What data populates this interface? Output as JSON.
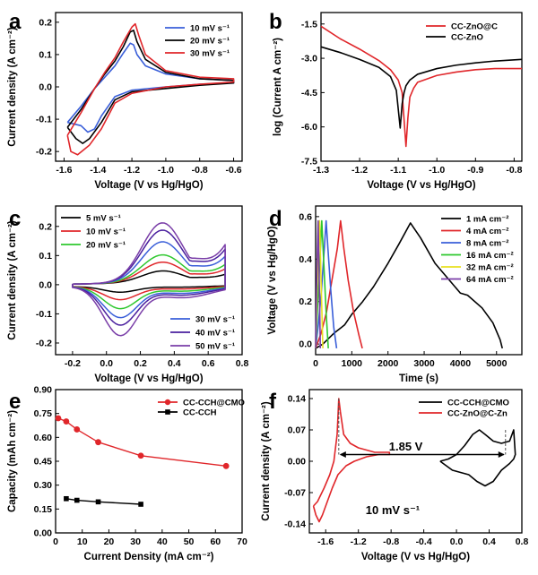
{
  "figure": {
    "panel_labels": [
      "a",
      "b",
      "c",
      "d",
      "e",
      "f"
    ]
  },
  "chart_data": [
    {
      "panel": "a",
      "type": "line",
      "xlabel": "Voltage (V vs Hg/HgO)",
      "ylabel": "Current density (A cm⁻²)",
      "xlim": [
        -1.65,
        -0.55
      ],
      "ylim": [
        -0.23,
        0.23
      ],
      "xticks": [
        -1.6,
        -1.4,
        -1.2,
        -1.0,
        -0.8,
        -0.6
      ],
      "yticks": [
        -0.2,
        -0.1,
        0.0,
        0.1,
        0.2
      ],
      "xtick_labels": [
        "-1.6",
        "-1.4",
        "-1.2",
        "-1.0",
        "-0.8",
        "-0.6"
      ],
      "ytick_labels": [
        "-0.2",
        "-0.1",
        "0.0",
        "0.1",
        "0.2"
      ],
      "legend_position": "top-right",
      "series": [
        {
          "name": "10 mV s⁻¹",
          "color": "#3a5fd9",
          "x": [
            -1.58,
            -1.5,
            -1.42,
            -1.36,
            -1.3,
            -1.25,
            -1.21,
            -1.19,
            -1.17,
            -1.12,
            -1.0,
            -0.8,
            -0.6,
            -0.6,
            -0.8,
            -1.0,
            -1.2,
            -1.3,
            -1.38,
            -1.42,
            -1.46,
            -1.5,
            -1.58
          ],
          "y": [
            -0.11,
            -0.06,
            -0.005,
            0.03,
            0.065,
            0.105,
            0.135,
            0.13,
            0.1,
            0.065,
            0.04,
            0.025,
            0.02,
            0.012,
            0.008,
            0.0,
            -0.01,
            -0.03,
            -0.09,
            -0.13,
            -0.14,
            -0.12,
            -0.11
          ]
        },
        {
          "name": "20 mV s⁻¹",
          "color": "#000000",
          "x": [
            -1.58,
            -1.5,
            -1.42,
            -1.36,
            -1.3,
            -1.25,
            -1.21,
            -1.19,
            -1.17,
            -1.12,
            -1.0,
            -0.8,
            -0.6,
            -0.6,
            -0.8,
            -1.0,
            -1.2,
            -1.3,
            -1.38,
            -1.45,
            -1.49,
            -1.53,
            -1.58
          ],
          "y": [
            -0.125,
            -0.07,
            -0.005,
            0.04,
            0.08,
            0.125,
            0.17,
            0.175,
            0.14,
            0.085,
            0.045,
            0.025,
            0.02,
            0.012,
            0.005,
            -0.005,
            -0.015,
            -0.04,
            -0.11,
            -0.16,
            -0.175,
            -0.16,
            -0.125
          ]
        },
        {
          "name": "30 mV s⁻¹",
          "color": "#e0262a",
          "x": [
            -1.58,
            -1.5,
            -1.42,
            -1.36,
            -1.3,
            -1.25,
            -1.2,
            -1.18,
            -1.16,
            -1.12,
            -1.0,
            -0.8,
            -0.6,
            -0.6,
            -0.8,
            -1.0,
            -1.2,
            -1.3,
            -1.38,
            -1.45,
            -1.52,
            -1.56,
            -1.58
          ],
          "y": [
            -0.15,
            -0.08,
            -0.005,
            0.045,
            0.09,
            0.14,
            0.185,
            0.195,
            0.16,
            0.1,
            0.05,
            0.03,
            0.025,
            0.015,
            0.008,
            0.0,
            -0.02,
            -0.05,
            -0.13,
            -0.18,
            -0.21,
            -0.2,
            -0.15
          ]
        }
      ]
    },
    {
      "panel": "b",
      "type": "line",
      "xlabel": "Voltage (V vs Hg/HgO)",
      "ylabel": "log (Current A cm⁻²)",
      "xlim": [
        -1.3,
        -0.78
      ],
      "ylim": [
        -7.5,
        -1.0
      ],
      "xticks": [
        -1.3,
        -1.2,
        -1.1,
        -1.0,
        -0.9,
        -0.8
      ],
      "yticks": [
        -1.5,
        -3.0,
        -4.5,
        -6.0,
        -7.5
      ],
      "xtick_labels": [
        "-1.3",
        "-1.2",
        "-1.1",
        "-1.0",
        "-0.9",
        "-0.8"
      ],
      "ytick_labels": [
        "-1.5",
        "-3.0",
        "-4.5",
        "-6.0",
        "-7.5"
      ],
      "legend_position": "top-right",
      "series": [
        {
          "name": "CC-ZnO@C",
          "color": "#e0262a",
          "x": [
            -1.3,
            -1.25,
            -1.2,
            -1.15,
            -1.12,
            -1.1,
            -1.09,
            -1.08,
            -1.075,
            -1.07,
            -1.06,
            -1.05,
            -1.0,
            -0.95,
            -0.9,
            -0.85,
            -0.78
          ],
          "y": [
            -1.6,
            -2.15,
            -2.6,
            -3.1,
            -3.5,
            -3.95,
            -4.5,
            -6.85,
            -5.6,
            -4.7,
            -4.3,
            -4.05,
            -3.75,
            -3.6,
            -3.5,
            -3.45,
            -3.45
          ]
        },
        {
          "name": "CC-ZnO",
          "color": "#000000",
          "x": [
            -1.3,
            -1.25,
            -1.2,
            -1.15,
            -1.12,
            -1.105,
            -1.095,
            -1.09,
            -1.085,
            -1.08,
            -1.07,
            -1.05,
            -1.0,
            -0.95,
            -0.9,
            -0.85,
            -0.78
          ],
          "y": [
            -2.5,
            -2.75,
            -3.05,
            -3.4,
            -3.8,
            -4.4,
            -6.05,
            -5.0,
            -4.5,
            -4.2,
            -3.95,
            -3.7,
            -3.45,
            -3.3,
            -3.2,
            -3.12,
            -3.05
          ]
        }
      ]
    },
    {
      "panel": "c",
      "type": "line",
      "xlabel": "Voltage (V vs Hg/HgO)",
      "ylabel": "Current density (A cm⁻²)",
      "xlim": [
        -0.3,
        0.8
      ],
      "ylim": [
        -0.24,
        0.27
      ],
      "xticks": [
        -0.2,
        0.0,
        0.2,
        0.4,
        0.6,
        0.8
      ],
      "yticks": [
        -0.2,
        -0.1,
        0.0,
        0.1,
        0.2
      ],
      "xtick_labels": [
        "-0.2",
        "0.0",
        "0.2",
        "0.4",
        "0.6",
        "0.8"
      ],
      "ytick_labels": [
        "-0.2",
        "-0.1",
        "0.0",
        "0.1",
        "0.2"
      ],
      "legend_position": "top-left and bottom-right",
      "series": [
        {
          "name": "5 mV s⁻¹",
          "color": "#000000",
          "peak": 0.04,
          "trough": -0.02
        },
        {
          "name": "10 mV s⁻¹",
          "color": "#e0262a",
          "peak": 0.07,
          "trough": -0.045
        },
        {
          "name": "20 mV s⁻¹",
          "color": "#2ec82e",
          "peak": 0.095,
          "trough": -0.075
        },
        {
          "name": "30 mV s⁻¹",
          "color": "#3a5fd9",
          "peak": 0.14,
          "trough": -0.105
        },
        {
          "name": "40 mV s⁻¹",
          "color": "#4a1f9e",
          "peak": 0.18,
          "trough": -0.13
        },
        {
          "name": "50 mV s⁻¹",
          "color": "#7a3ea8",
          "peak": 0.205,
          "trough": -0.165
        }
      ]
    },
    {
      "panel": "d",
      "type": "line",
      "xlabel": "Time (s)",
      "ylabel": "Voltage (V vs Hg/HgO)",
      "xlim": [
        0,
        5700
      ],
      "ylim": [
        -0.05,
        0.65
      ],
      "xticks": [
        0,
        1000,
        2000,
        3000,
        4000,
        5000
      ],
      "yticks": [
        0.0,
        0.2,
        0.4,
        0.6
      ],
      "xtick_labels": [
        "0",
        "1000",
        "2000",
        "3000",
        "4000",
        "5000"
      ],
      "ytick_labels": [
        "0.0",
        "0.2",
        "0.4",
        "0.6"
      ],
      "legend_position": "top-right",
      "series": [
        {
          "name": "1 mA cm⁻²",
          "color": "#000000",
          "x": [
            0,
            200,
            500,
            800,
            1000,
            1300,
            1600,
            2000,
            2300,
            2620,
            2900,
            3300,
            3700,
            4000,
            4200,
            4600,
            4900,
            5100,
            5160
          ],
          "y": [
            -0.02,
            0.0,
            0.05,
            0.09,
            0.14,
            0.2,
            0.27,
            0.38,
            0.47,
            0.57,
            0.5,
            0.38,
            0.3,
            0.24,
            0.23,
            0.17,
            0.1,
            0.02,
            -0.02
          ]
        },
        {
          "name": "4 mA cm⁻²",
          "color": "#e0262a",
          "x": [
            0,
            150,
            300,
            450,
            600,
            690,
            780,
            900,
            1050,
            1200,
            1290
          ],
          "y": [
            -0.02,
            0.05,
            0.15,
            0.3,
            0.45,
            0.58,
            0.45,
            0.3,
            0.15,
            0.04,
            -0.02
          ]
        },
        {
          "name": "8 mA cm⁻²",
          "color": "#3a5fd9",
          "x": [
            0,
            80,
            160,
            240,
            290,
            340,
            420,
            500,
            580
          ],
          "y": [
            -0.02,
            0.1,
            0.25,
            0.45,
            0.58,
            0.45,
            0.25,
            0.08,
            -0.02
          ]
        },
        {
          "name": "16 mA cm⁻²",
          "color": "#2ec82e",
          "x": [
            0,
            60,
            120,
            170,
            220,
            290,
            350
          ],
          "y": [
            -0.02,
            0.2,
            0.4,
            0.58,
            0.4,
            0.15,
            -0.02
          ]
        },
        {
          "name": "32 mA cm⁻²",
          "color": "#e8e021",
          "x": [
            0,
            40,
            80,
            110,
            150,
            200
          ],
          "y": [
            -0.02,
            0.25,
            0.45,
            0.58,
            0.3,
            -0.02
          ]
        },
        {
          "name": "64 mA cm⁻²",
          "color": "#7a3ea8",
          "x": [
            0,
            25,
            50,
            70,
            100,
            130
          ],
          "y": [
            -0.02,
            0.25,
            0.45,
            0.58,
            0.3,
            -0.02
          ]
        }
      ]
    },
    {
      "panel": "e",
      "type": "scatter",
      "xlabel": "Current Density (mA cm⁻²)",
      "ylabel": "Capacity (mAh cm⁻²)",
      "xlim": [
        0,
        70
      ],
      "ylim": [
        0.0,
        0.9
      ],
      "xticks": [
        0,
        10,
        20,
        30,
        40,
        50,
        60,
        70
      ],
      "yticks": [
        0.0,
        0.15,
        0.3,
        0.45,
        0.6,
        0.75,
        0.9
      ],
      "xtick_labels": [
        "0",
        "10",
        "20",
        "30",
        "40",
        "50",
        "60",
        "70"
      ],
      "ytick_labels": [
        "0.00",
        "0.15",
        "0.30",
        "0.45",
        "0.60",
        "0.75",
        "0.90"
      ],
      "legend_position": "top-right",
      "series": [
        {
          "name": "CC-CCH@CMO",
          "color": "#e0262a",
          "marker": "circle",
          "x": [
            1,
            4,
            8,
            16,
            32,
            64
          ],
          "y": [
            0.72,
            0.7,
            0.65,
            0.57,
            0.485,
            0.42
          ]
        },
        {
          "name": "CC-CCH",
          "color": "#000000",
          "marker": "square",
          "x": [
            4,
            8,
            16,
            32
          ],
          "y": [
            0.215,
            0.205,
            0.195,
            0.18
          ]
        }
      ]
    },
    {
      "panel": "f",
      "type": "line",
      "xlabel": "Voltage (V vs Hg/HgO)",
      "ylabel": "Current density (A cm⁻²)",
      "xlim": [
        -1.8,
        0.8
      ],
      "ylim": [
        -0.16,
        0.16
      ],
      "xticks": [
        -1.6,
        -1.2,
        -0.8,
        -0.4,
        0.0,
        0.4,
        0.8
      ],
      "yticks": [
        -0.14,
        -0.07,
        0.0,
        0.07,
        0.14
      ],
      "xtick_labels": [
        "-1.6",
        "-1.2",
        "-0.8",
        "-0.4",
        "0.0",
        "0.4",
        "0.8"
      ],
      "ytick_labels": [
        "-0.14",
        "-0.07",
        "0.00",
        "0.07",
        "0.14"
      ],
      "legend_position": "top-right",
      "annotations": [
        "1.85 V",
        "10 mV s⁻¹"
      ],
      "series": [
        {
          "name": "CC-CCH@CMO",
          "color": "#000000",
          "x": [
            -0.2,
            -0.1,
            0.0,
            0.1,
            0.2,
            0.28,
            0.35,
            0.45,
            0.55,
            0.65,
            0.7,
            0.72,
            0.7,
            0.65,
            0.55,
            0.45,
            0.35,
            0.25,
            0.15,
            0.05,
            -0.05,
            -0.2
          ],
          "y": [
            0.0,
            0.005,
            0.015,
            0.035,
            0.06,
            0.07,
            0.06,
            0.045,
            0.04,
            0.045,
            0.07,
            0.015,
            0.005,
            -0.005,
            -0.02,
            -0.045,
            -0.055,
            -0.045,
            -0.03,
            -0.025,
            -0.02,
            0.0
          ]
        },
        {
          "name": "CC-ZnO@C-Zn",
          "color": "#e0262a",
          "x": [
            -1.75,
            -1.7,
            -1.62,
            -1.55,
            -1.5,
            -1.46,
            -1.44,
            -1.42,
            -1.38,
            -1.3,
            -1.2,
            -1.1,
            -1.0,
            -0.9,
            -0.82,
            -0.82,
            -0.95,
            -1.1,
            -1.25,
            -1.35,
            -1.45,
            -1.52,
            -1.58,
            -1.64,
            -1.68,
            -1.72,
            -1.75
          ],
          "y": [
            -0.1,
            -0.09,
            -0.06,
            -0.03,
            0.0,
            0.06,
            0.14,
            0.11,
            0.06,
            0.04,
            0.03,
            0.025,
            0.02,
            0.02,
            0.02,
            0.015,
            0.015,
            0.01,
            0.0,
            -0.01,
            -0.03,
            -0.06,
            -0.09,
            -0.12,
            -0.135,
            -0.12,
            -0.1
          ]
        }
      ]
    }
  ]
}
